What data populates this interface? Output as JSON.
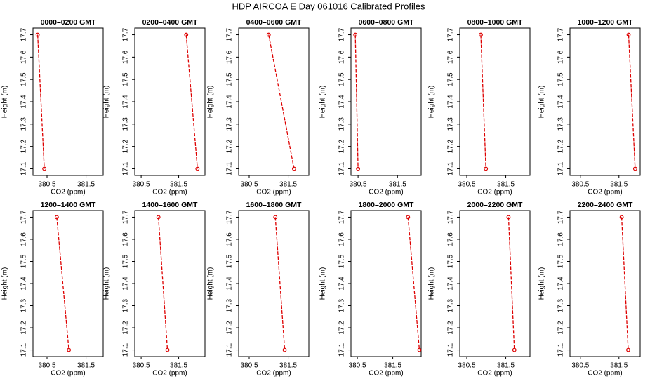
{
  "title": "HDP AIRCOA E  Day 061016  Calibrated Profiles",
  "chart_data": [
    {
      "type": "line",
      "title": "0000–0200 GMT",
      "x_label": "CO2 (ppm)",
      "y_label": "Height (m)",
      "xlim": [
        380.14,
        381.94
      ],
      "ylim": [
        17.07,
        17.73
      ],
      "xticks": [
        380.5,
        381.5
      ],
      "yticks": [
        17.1,
        17.2,
        17.3,
        17.4,
        17.5,
        17.6,
        17.7
      ],
      "series": [
        {
          "color": "#dd0000",
          "x": [
            380.26,
            380.43
          ],
          "values": [
            17.7,
            17.1
          ]
        }
      ]
    },
    {
      "type": "line",
      "title": "0200–0400 GMT",
      "x_label": "CO2 (ppm)",
      "y_label": "Height (m)",
      "xlim": [
        380.33,
        382.2
      ],
      "ylim": [
        17.07,
        17.73
      ],
      "xticks": [
        380.5,
        381.5
      ],
      "yticks": [
        17.1,
        17.2,
        17.3,
        17.4,
        17.5,
        17.6,
        17.7
      ],
      "series": [
        {
          "color": "#dd0000",
          "x": [
            381.7,
            382.0
          ],
          "values": [
            17.7,
            17.1
          ]
        }
      ]
    },
    {
      "type": "line",
      "title": "0400–0600 GMT",
      "x_label": "CO2 (ppm)",
      "y_label": "Height (m)",
      "xlim": [
        380.23,
        382.03
      ],
      "ylim": [
        17.07,
        17.73
      ],
      "xticks": [
        380.5,
        381.5
      ],
      "yticks": [
        17.1,
        17.2,
        17.3,
        17.4,
        17.5,
        17.6,
        17.7
      ],
      "series": [
        {
          "color": "#dd0000",
          "x": [
            381.0,
            381.65
          ],
          "values": [
            17.7,
            17.1
          ]
        }
      ]
    },
    {
      "type": "line",
      "title": "0600–0800 GMT",
      "x_label": "CO2 (ppm)",
      "y_label": "Height (m)",
      "xlim": [
        380.32,
        382.1
      ],
      "ylim": [
        17.07,
        17.73
      ],
      "xticks": [
        380.5,
        381.5
      ],
      "yticks": [
        17.1,
        17.2,
        17.3,
        17.4,
        17.5,
        17.6,
        17.7
      ],
      "series": [
        {
          "color": "#dd0000",
          "x": [
            380.43,
            380.5
          ],
          "values": [
            17.7,
            17.1
          ]
        }
      ]
    },
    {
      "type": "line",
      "title": "0800–1000 GMT",
      "x_label": "CO2 (ppm)",
      "y_label": "Height (m)",
      "xlim": [
        380.32,
        382.12
      ],
      "ylim": [
        17.07,
        17.73
      ],
      "xticks": [
        380.5,
        381.5
      ],
      "yticks": [
        17.1,
        17.2,
        17.3,
        17.4,
        17.5,
        17.6,
        17.7
      ],
      "series": [
        {
          "color": "#dd0000",
          "x": [
            380.86,
            380.99
          ],
          "values": [
            17.7,
            17.1
          ]
        }
      ]
    },
    {
      "type": "line",
      "title": "1000–1200 GMT",
      "x_label": "CO2 (ppm)",
      "y_label": "Height (m)",
      "xlim": [
        380.23,
        382.05
      ],
      "ylim": [
        17.07,
        17.73
      ],
      "xticks": [
        380.5,
        381.5
      ],
      "yticks": [
        17.1,
        17.2,
        17.3,
        17.4,
        17.5,
        17.6,
        17.7
      ],
      "series": [
        {
          "color": "#dd0000",
          "x": [
            381.75,
            381.92
          ],
          "values": [
            17.7,
            17.1
          ]
        }
      ]
    },
    {
      "type": "line",
      "title": "1200–1400 GMT",
      "x_label": "CO2 (ppm)",
      "y_label": "Height (m)",
      "xlim": [
        380.14,
        381.94
      ],
      "ylim": [
        17.07,
        17.73
      ],
      "xticks": [
        380.5,
        381.5
      ],
      "yticks": [
        17.1,
        17.2,
        17.3,
        17.4,
        17.5,
        17.6,
        17.7
      ],
      "series": [
        {
          "color": "#dd0000",
          "x": [
            380.75,
            381.06
          ],
          "values": [
            17.7,
            17.1
          ]
        }
      ]
    },
    {
      "type": "line",
      "title": "1400–1600 GMT",
      "x_label": "CO2 (ppm)",
      "y_label": "Height (m)",
      "xlim": [
        380.33,
        382.2
      ],
      "ylim": [
        17.07,
        17.73
      ],
      "xticks": [
        380.5,
        381.5
      ],
      "yticks": [
        17.1,
        17.2,
        17.3,
        17.4,
        17.5,
        17.6,
        17.7
      ],
      "series": [
        {
          "color": "#dd0000",
          "x": [
            380.96,
            381.2
          ],
          "values": [
            17.7,
            17.1
          ]
        }
      ]
    },
    {
      "type": "line",
      "title": "1600–1800 GMT",
      "x_label": "CO2 (ppm)",
      "y_label": "Height (m)",
      "xlim": [
        380.23,
        382.03
      ],
      "ylim": [
        17.07,
        17.73
      ],
      "xticks": [
        380.5,
        381.5
      ],
      "yticks": [
        17.1,
        17.2,
        17.3,
        17.4,
        17.5,
        17.6,
        17.7
      ],
      "series": [
        {
          "color": "#dd0000",
          "x": [
            381.17,
            381.41
          ],
          "values": [
            17.7,
            17.1
          ]
        }
      ]
    },
    {
      "type": "line",
      "title": "1800–2000 GMT",
      "x_label": "CO2 (ppm)",
      "y_label": "Height (m)",
      "xlim": [
        380.32,
        382.3
      ],
      "ylim": [
        17.07,
        17.73
      ],
      "xticks": [
        380.5,
        381.5
      ],
      "yticks": [
        17.1,
        17.2,
        17.3,
        17.4,
        17.5,
        17.6,
        17.7
      ],
      "series": [
        {
          "color": "#dd0000",
          "x": [
            381.93,
            382.25
          ],
          "values": [
            17.7,
            17.1
          ]
        }
      ]
    },
    {
      "type": "line",
      "title": "2000–2200 GMT",
      "x_label": "CO2 (ppm)",
      "y_label": "Height (m)",
      "xlim": [
        380.32,
        382.12
      ],
      "ylim": [
        17.07,
        17.73
      ],
      "xticks": [
        380.5,
        381.5
      ],
      "yticks": [
        17.1,
        17.2,
        17.3,
        17.4,
        17.5,
        17.6,
        17.7
      ],
      "series": [
        {
          "color": "#dd0000",
          "x": [
            381.57,
            381.72
          ],
          "values": [
            17.7,
            17.1
          ]
        }
      ]
    },
    {
      "type": "line",
      "title": "2200–2400 GMT",
      "x_label": "CO2 (ppm)",
      "y_label": "Height (m)",
      "xlim": [
        380.23,
        382.05
      ],
      "ylim": [
        17.07,
        17.73
      ],
      "xticks": [
        380.5,
        381.5
      ],
      "yticks": [
        17.1,
        17.2,
        17.3,
        17.4,
        17.5,
        17.6,
        17.7
      ],
      "series": [
        {
          "color": "#dd0000",
          "x": [
            381.57,
            381.74
          ],
          "values": [
            17.7,
            17.1
          ]
        }
      ]
    }
  ]
}
